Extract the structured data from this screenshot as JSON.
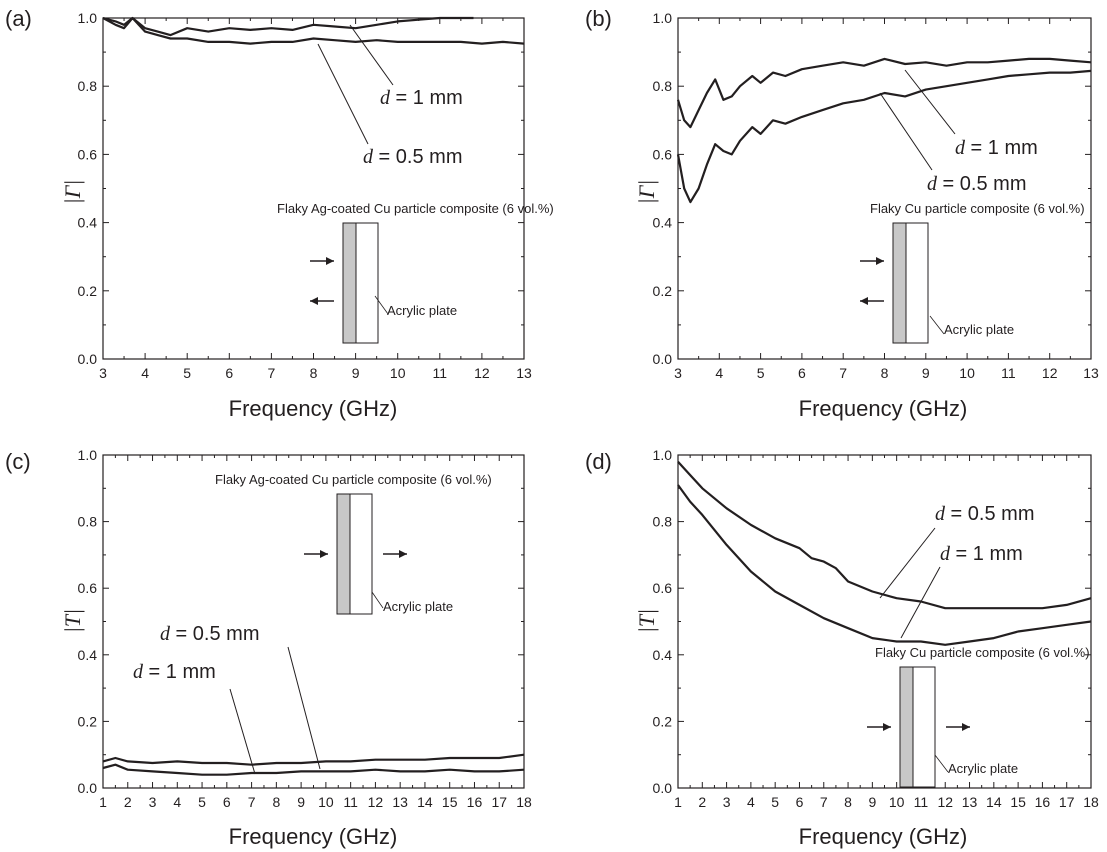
{
  "chart_data": [
    {
      "panel": "(a)",
      "type": "line",
      "xlabel": "Frequency (GHz)",
      "ylabel": "|Γ|",
      "xlim": [
        3,
        13
      ],
      "ylim": [
        0.0,
        1.0
      ],
      "xticks": [
        "3",
        "4",
        "5",
        "6",
        "7",
        "8",
        "9",
        "10",
        "11",
        "12",
        "13"
      ],
      "yticks": [
        "0.0",
        "0.2",
        "0.4",
        "0.6",
        "0.8",
        "1.0"
      ],
      "series": [
        {
          "name": "d = 1 mm",
          "x": [
            3.0,
            3.3,
            3.5,
            3.7,
            4.0,
            4.3,
            4.6,
            5.0,
            5.5,
            6.0,
            6.5,
            7.0,
            7.5,
            8.0,
            8.5,
            9.0,
            9.5,
            10.0,
            10.5,
            11.0,
            11.5,
            11.8
          ],
          "y": [
            1.0,
            0.99,
            0.98,
            1.0,
            0.97,
            0.96,
            0.95,
            0.97,
            0.96,
            0.97,
            0.965,
            0.97,
            0.965,
            0.98,
            0.975,
            0.97,
            0.98,
            0.99,
            0.995,
            1.0,
            1.0,
            1.0
          ]
        },
        {
          "name": "d = 0.5 mm",
          "x": [
            3.0,
            3.3,
            3.5,
            3.7,
            4.0,
            4.3,
            4.6,
            5.0,
            5.5,
            6.0,
            6.5,
            7.0,
            7.5,
            8.0,
            8.5,
            9.0,
            9.5,
            10.0,
            10.5,
            11.0,
            11.5,
            12.0,
            12.5,
            13.0
          ],
          "y": [
            1.0,
            0.98,
            0.97,
            1.0,
            0.96,
            0.95,
            0.94,
            0.94,
            0.93,
            0.93,
            0.925,
            0.93,
            0.93,
            0.94,
            0.935,
            0.93,
            0.935,
            0.93,
            0.93,
            0.93,
            0.93,
            0.925,
            0.93,
            0.925
          ]
        }
      ],
      "annotations": [
        {
          "text": "d = 1 mm",
          "value_text": "= 1 mm"
        },
        {
          "text": "d = 0.5 mm",
          "value_text": "= 0.5 mm"
        }
      ],
      "inset": {
        "title": "Flaky Ag-coated Cu particle composite (6 vol.%)",
        "plate": "Acrylic plate",
        "arrows": "incident-and-reflected"
      }
    },
    {
      "panel": "(b)",
      "type": "line",
      "xlabel": "Frequency (GHz)",
      "ylabel": "|Γ|",
      "xlim": [
        3,
        13
      ],
      "ylim": [
        0.0,
        1.0
      ],
      "xticks": [
        "3",
        "4",
        "5",
        "6",
        "7",
        "8",
        "9",
        "10",
        "11",
        "12",
        "13"
      ],
      "yticks": [
        "0.0",
        "0.2",
        "0.4",
        "0.6",
        "0.8",
        "1.0"
      ],
      "series": [
        {
          "name": "d = 1 mm",
          "x": [
            3.0,
            3.15,
            3.3,
            3.5,
            3.7,
            3.9,
            4.1,
            4.3,
            4.5,
            4.8,
            5.0,
            5.3,
            5.6,
            6.0,
            6.5,
            7.0,
            7.5,
            8.0,
            8.5,
            9.0,
            9.5,
            10.0,
            10.5,
            11.0,
            11.5,
            12.0,
            12.5,
            13.0
          ],
          "y": [
            0.76,
            0.7,
            0.68,
            0.73,
            0.78,
            0.82,
            0.76,
            0.77,
            0.8,
            0.83,
            0.81,
            0.84,
            0.83,
            0.85,
            0.86,
            0.87,
            0.86,
            0.88,
            0.865,
            0.87,
            0.86,
            0.87,
            0.87,
            0.875,
            0.88,
            0.88,
            0.875,
            0.87
          ]
        },
        {
          "name": "d = 0.5 mm",
          "x": [
            3.0,
            3.15,
            3.3,
            3.5,
            3.7,
            3.9,
            4.1,
            4.3,
            4.5,
            4.8,
            5.0,
            5.3,
            5.6,
            6.0,
            6.5,
            7.0,
            7.5,
            8.0,
            8.5,
            9.0,
            9.5,
            10.0,
            10.5,
            11.0,
            11.5,
            12.0,
            12.5,
            13.0
          ],
          "y": [
            0.6,
            0.5,
            0.46,
            0.5,
            0.57,
            0.63,
            0.61,
            0.6,
            0.64,
            0.68,
            0.66,
            0.7,
            0.69,
            0.71,
            0.73,
            0.75,
            0.76,
            0.78,
            0.77,
            0.79,
            0.8,
            0.81,
            0.82,
            0.83,
            0.835,
            0.84,
            0.84,
            0.845
          ]
        }
      ],
      "annotations": [
        {
          "text": "d = 1 mm",
          "value_text": "= 1 mm"
        },
        {
          "text": "d = 0.5 mm",
          "value_text": "= 0.5 mm"
        }
      ],
      "inset": {
        "title": "Flaky Cu particle composite (6 vol.%)",
        "plate": "Acrylic plate",
        "arrows": "incident-and-reflected"
      }
    },
    {
      "panel": "(c)",
      "type": "line",
      "xlabel": "Frequency (GHz)",
      "ylabel": "|T|",
      "xlim": [
        1,
        18
      ],
      "ylim": [
        0.0,
        1.0
      ],
      "xticks": [
        "1",
        "2",
        "3",
        "4",
        "5",
        "6",
        "7",
        "8",
        "9",
        "10",
        "11",
        "12",
        "13",
        "14",
        "15",
        "16",
        "17",
        "18"
      ],
      "yticks": [
        "0.0",
        "0.2",
        "0.4",
        "0.6",
        "0.8",
        "1.0"
      ],
      "series": [
        {
          "name": "d = 0.5 mm",
          "x": [
            1.0,
            1.5,
            2.0,
            3.0,
            4.0,
            5.0,
            6.0,
            7.0,
            8.0,
            9.0,
            10.0,
            11.0,
            12.0,
            13.0,
            14.0,
            15.0,
            16.0,
            17.0,
            18.0
          ],
          "y": [
            0.08,
            0.09,
            0.08,
            0.075,
            0.08,
            0.075,
            0.075,
            0.07,
            0.075,
            0.075,
            0.08,
            0.08,
            0.085,
            0.085,
            0.085,
            0.09,
            0.09,
            0.09,
            0.1
          ]
        },
        {
          "name": "d = 1 mm",
          "x": [
            1.0,
            1.5,
            2.0,
            3.0,
            4.0,
            5.0,
            6.0,
            7.0,
            8.0,
            9.0,
            10.0,
            11.0,
            12.0,
            13.0,
            14.0,
            15.0,
            16.0,
            17.0,
            18.0
          ],
          "y": [
            0.06,
            0.07,
            0.055,
            0.05,
            0.045,
            0.04,
            0.04,
            0.045,
            0.045,
            0.05,
            0.05,
            0.05,
            0.055,
            0.05,
            0.05,
            0.055,
            0.05,
            0.05,
            0.055
          ]
        }
      ],
      "annotations": [
        {
          "text": "d = 0.5 mm",
          "value_text": "= 0.5 mm"
        },
        {
          "text": "d = 1 mm",
          "value_text": "= 1 mm"
        }
      ],
      "inset": {
        "title": "Flaky Ag-coated Cu particle composite (6 vol.%)",
        "plate": "Acrylic plate",
        "arrows": "transmitted"
      }
    },
    {
      "panel": "(d)",
      "type": "line",
      "xlabel": "Frequency (GHz)",
      "ylabel": "|T|",
      "xlim": [
        1,
        18
      ],
      "ylim": [
        0.0,
        1.0
      ],
      "xticks": [
        "1",
        "2",
        "3",
        "4",
        "5",
        "6",
        "7",
        "8",
        "9",
        "10",
        "11",
        "12",
        "13",
        "14",
        "15",
        "16",
        "17",
        "18"
      ],
      "yticks": [
        "0.0",
        "0.2",
        "0.4",
        "0.6",
        "0.8",
        "1.0"
      ],
      "series": [
        {
          "name": "d = 0.5 mm",
          "x": [
            1.0,
            1.5,
            2.0,
            3.0,
            4.0,
            5.0,
            6.0,
            6.5,
            7.0,
            7.5,
            8.0,
            9.0,
            10.0,
            11.0,
            12.0,
            13.0,
            14.0,
            15.0,
            16.0,
            17.0,
            18.0
          ],
          "y": [
            0.98,
            0.94,
            0.9,
            0.84,
            0.79,
            0.75,
            0.72,
            0.69,
            0.68,
            0.66,
            0.62,
            0.59,
            0.57,
            0.56,
            0.54,
            0.54,
            0.54,
            0.54,
            0.54,
            0.55,
            0.57
          ]
        },
        {
          "name": "d = 1 mm",
          "x": [
            1.0,
            1.5,
            2.0,
            3.0,
            4.0,
            5.0,
            6.0,
            7.0,
            8.0,
            9.0,
            10.0,
            11.0,
            12.0,
            13.0,
            14.0,
            15.0,
            16.0,
            17.0,
            18.0
          ],
          "y": [
            0.91,
            0.86,
            0.82,
            0.73,
            0.65,
            0.59,
            0.55,
            0.51,
            0.48,
            0.45,
            0.44,
            0.44,
            0.43,
            0.44,
            0.45,
            0.47,
            0.48,
            0.49,
            0.5
          ]
        }
      ],
      "annotations": [
        {
          "text": "d = 0.5 mm",
          "value_text": "= 0.5 mm"
        },
        {
          "text": "d = 1 mm",
          "value_text": "= 1 mm"
        }
      ],
      "inset": {
        "title": "Flaky Cu particle composite (6 vol.%)",
        "plate": "Acrylic plate",
        "arrows": "transmitted"
      }
    }
  ],
  "colors": {
    "line": "#231f20",
    "composite_fill": "#c8c8c8",
    "plate_fill": "#ffffff"
  }
}
